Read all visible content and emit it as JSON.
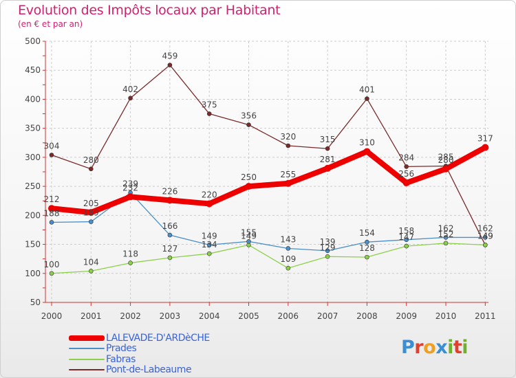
{
  "title": "Evolution des Impôts locaux par Habitant",
  "subtitle": "(en € et par an)",
  "logo": {
    "text": "Proxiti",
    "colors": [
      "#3a8ed4",
      "#e04030",
      "#f0a020",
      "#3a8ed4",
      "#70b030",
      "#e04030",
      "#70b030"
    ]
  },
  "chart_data": {
    "type": "line",
    "title": "Evolution des Impôts locaux par Habitant",
    "subtitle": "(en € et par an)",
    "x": [
      "2000",
      "2001",
      "2002",
      "2003",
      "2004",
      "2005",
      "2006",
      "2007",
      "2008",
      "2009",
      "2010",
      "2011"
    ],
    "ylim": [
      50,
      500
    ],
    "yticks": [
      50,
      100,
      150,
      200,
      250,
      300,
      350,
      400,
      450,
      500
    ],
    "grid": true,
    "legend": "bottom-left",
    "series": [
      {
        "name": "LALEVADE-D'ARDèCHE",
        "color": "#ee0000",
        "width": 8,
        "values": [
          212,
          205,
          232,
          226,
          220,
          250,
          255,
          281,
          310,
          256,
          280,
          317
        ],
        "labels": [
          "212",
          "205",
          "232",
          "226",
          "220",
          "250",
          "255",
          "281",
          "310",
          "256",
          "280",
          "317"
        ]
      },
      {
        "name": "Prades",
        "color": "#4a8fc8",
        "width": 1.3,
        "values": [
          188,
          189,
          239,
          166,
          149,
          155,
          143,
          139,
          154,
          158,
          162,
          162
        ],
        "labels": [
          "188",
          "189",
          "239",
          "166",
          "149",
          "155",
          "143",
          "139",
          "154",
          "158",
          "162",
          "162"
        ]
      },
      {
        "name": "Fabras",
        "color": "#8cd04a",
        "width": 1.3,
        "values": [
          100,
          104,
          118,
          127,
          134,
          149,
          109,
          129,
          128,
          147,
          152,
          149
        ],
        "labels": [
          "100",
          "104",
          "118",
          "127",
          "134",
          "149",
          "109",
          "129",
          "128",
          "147",
          "152",
          "149"
        ]
      },
      {
        "name": "Pont-de-Labeaume",
        "color": "#7a2a2a",
        "width": 1.3,
        "values": [
          304,
          280,
          402,
          459,
          375,
          356,
          320,
          315,
          401,
          284,
          285,
          149
        ],
        "labels": [
          "304",
          "280",
          "402",
          "459",
          "375",
          "356",
          "320",
          "315",
          "401",
          "284",
          "285",
          "149"
        ]
      }
    ]
  }
}
